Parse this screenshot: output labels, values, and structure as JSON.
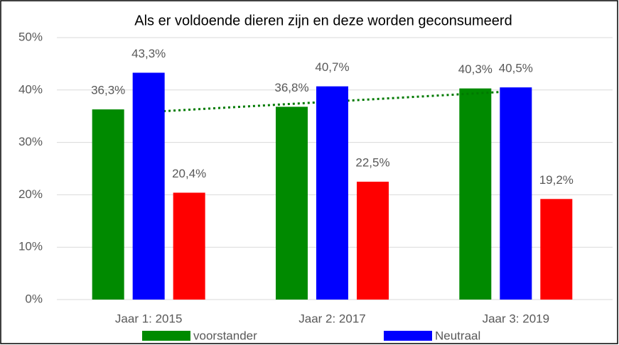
{
  "chart_data": {
    "type": "bar",
    "title": "Als er voldoende dieren zijn en deze worden geconsumeerd",
    "categories": [
      "Jaar 1: 2015",
      "Jaar 2: 2017",
      "Jaar 3: 2019"
    ],
    "series": [
      {
        "name": "voorstander",
        "color": "#008a00",
        "values": [
          36.3,
          36.8,
          40.3
        ],
        "value_labels": [
          "36,3%",
          "36,8%",
          "40,3%"
        ],
        "trendline": {
          "color": "#007a00",
          "style": "dotted"
        }
      },
      {
        "name": "Neutraal",
        "color": "#0000ff",
        "values": [
          43.3,
          40.7,
          40.5
        ],
        "value_labels": [
          "43,3%",
          "40,7%",
          "40,5%"
        ]
      },
      {
        "color": "#ff0000",
        "values": [
          20.4,
          22.5,
          19.2
        ],
        "value_labels": [
          "20,4%",
          "22,5%",
          "19,2%"
        ]
      }
    ],
    "ylim": [
      0,
      50
    ],
    "yticks": [
      {
        "value": 0,
        "label": "0%"
      },
      {
        "value": 10,
        "label": "10%"
      },
      {
        "value": 20,
        "label": "20%"
      },
      {
        "value": 30,
        "label": "30%"
      },
      {
        "value": 40,
        "label": "40%"
      },
      {
        "value": 50,
        "label": "50%"
      }
    ],
    "grid": true,
    "legend": "bottom"
  }
}
